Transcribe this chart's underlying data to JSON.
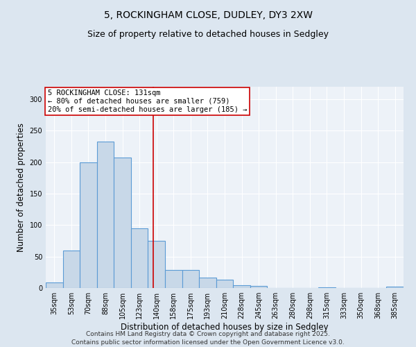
{
  "title1": "5, ROCKINGHAM CLOSE, DUDLEY, DY3 2XW",
  "title2": "Size of property relative to detached houses in Sedgley",
  "xlabel": "Distribution of detached houses by size in Sedgley",
  "ylabel": "Number of detached properties",
  "categories": [
    "35sqm",
    "53sqm",
    "70sqm",
    "88sqm",
    "105sqm",
    "123sqm",
    "140sqm",
    "158sqm",
    "175sqm",
    "193sqm",
    "210sqm",
    "228sqm",
    "245sqm",
    "263sqm",
    "280sqm",
    "298sqm",
    "315sqm",
    "333sqm",
    "350sqm",
    "368sqm",
    "385sqm"
  ],
  "values": [
    9,
    60,
    200,
    233,
    208,
    95,
    75,
    29,
    29,
    17,
    13,
    4,
    3,
    0,
    0,
    0,
    1,
    0,
    0,
    0,
    2
  ],
  "bar_color": "#c8d8e8",
  "bar_edge_color": "#5b9bd5",
  "bar_edge_width": 0.8,
  "vline_x": 5.82,
  "vline_color": "#cc0000",
  "annotation_text": "5 ROCKINGHAM CLOSE: 131sqm\n← 80% of detached houses are smaller (759)\n20% of semi-detached houses are larger (185) →",
  "annotation_box_color": "#ffffff",
  "annotation_box_edge": "#cc0000",
  "ylim": [
    0,
    320
  ],
  "yticks": [
    0,
    50,
    100,
    150,
    200,
    250,
    300
  ],
  "bg_color": "#dce6f0",
  "plot_bg_color": "#edf2f8",
  "grid_color": "#ffffff",
  "footnote1": "Contains HM Land Registry data © Crown copyright and database right 2025.",
  "footnote2": "Contains public sector information licensed under the Open Government Licence v3.0.",
  "title_fontsize": 10,
  "subtitle_fontsize": 9,
  "axis_label_fontsize": 8.5,
  "tick_fontsize": 7,
  "annotation_fontsize": 7.5,
  "footnote_fontsize": 6.5
}
